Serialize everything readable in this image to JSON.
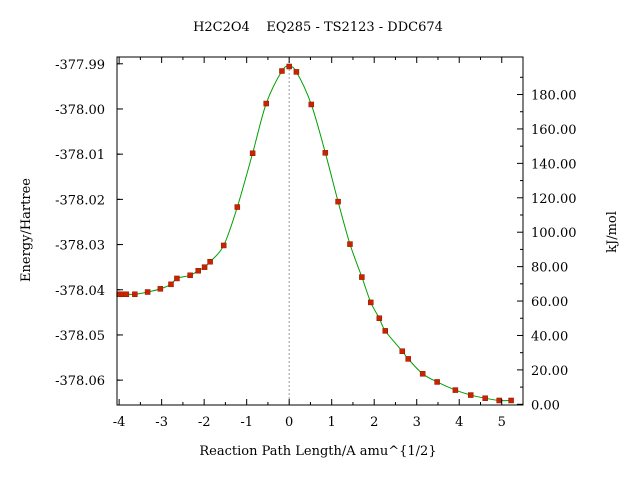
{
  "chart_data": {
    "type": "line",
    "title": "H2C2O4    EQ285 - TS2123 - DDC674",
    "xlabel": "Reaction Path Length/A amu^{1/2}",
    "ylabel": "Energy/Hartree",
    "y2label": "kJ/mol",
    "xlim": [
      -4.05,
      5.5
    ],
    "ylim": [
      -378.0655,
      -377.9885
    ],
    "y2lim": [
      -0.4,
      201.8
    ],
    "x_ticks": [
      -4,
      -3,
      -2,
      -1,
      0,
      1,
      2,
      3,
      4,
      5
    ],
    "x_tick_labels": [
      "-4",
      "-3",
      "-2",
      "-1",
      "0",
      "1",
      "2",
      "3",
      "4",
      "5"
    ],
    "y_ticks": [
      -377.99,
      -378.0,
      -378.01,
      -378.02,
      -378.03,
      -378.04,
      -378.05,
      -378.06
    ],
    "y_tick_labels": [
      "-377.99",
      "-378.00",
      "-378.01",
      "-378.02",
      "-378.03",
      "-378.04",
      "-378.05",
      "-378.06"
    ],
    "y2_ticks": [
      0,
      20,
      40,
      60,
      80,
      100,
      120,
      140,
      160,
      180
    ],
    "y2_tick_labels": [
      "0.00",
      "20.00",
      "40.00",
      "60.00",
      "80.00",
      "100.00",
      "120.00",
      "140.00",
      "160.00",
      "180.00"
    ],
    "ts_marker_x": 0,
    "line_color": "#00a000",
    "marker_color": "#cc2200",
    "reference_line_color": "#999999",
    "points": {
      "x": [
        -4.0,
        -3.92,
        -3.83,
        -3.63,
        -3.33,
        -3.03,
        -2.78,
        -2.64,
        -2.33,
        -2.14,
        -1.99,
        -1.86,
        -1.54,
        -1.22,
        -0.86,
        -0.54,
        -0.17,
        0.0,
        0.17,
        0.52,
        0.85,
        1.15,
        1.43,
        1.71,
        1.92,
        2.12,
        2.26,
        2.66,
        2.8,
        3.14,
        3.48,
        3.91,
        4.27,
        4.61,
        4.94,
        5.22
      ],
      "y": [
        -378.041,
        -378.041,
        -378.041,
        -378.041,
        -378.0405,
        -378.0398,
        -378.0388,
        -378.0375,
        -378.0368,
        -378.0358,
        -378.035,
        -378.0338,
        -378.0302,
        -378.0217,
        -378.0098,
        -377.9988,
        -377.9916,
        -377.9906,
        -377.9918,
        -377.999,
        -378.0097,
        -378.0205,
        -378.0299,
        -378.0372,
        -378.0428,
        -378.0463,
        -378.0491,
        -378.0536,
        -378.0553,
        -378.0586,
        -378.0604,
        -378.0622,
        -378.0633,
        -378.064,
        -378.0645,
        -378.0645
      ]
    }
  }
}
